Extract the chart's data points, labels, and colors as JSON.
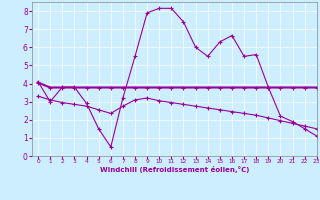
{
  "x": [
    0,
    1,
    2,
    3,
    4,
    5,
    6,
    7,
    8,
    9,
    10,
    11,
    12,
    13,
    14,
    15,
    16,
    17,
    18,
    19,
    20,
    21,
    22,
    23
  ],
  "line1": [
    4.1,
    3.0,
    3.8,
    3.8,
    2.9,
    1.5,
    0.5,
    3.2,
    5.5,
    7.9,
    8.15,
    8.15,
    7.4,
    6.0,
    5.5,
    6.3,
    6.65,
    5.5,
    5.6,
    3.8,
    2.2,
    1.9,
    1.5,
    1.1
  ],
  "line2": [
    4.05,
    3.78,
    3.78,
    3.78,
    3.78,
    3.78,
    3.78,
    3.78,
    3.78,
    3.78,
    3.78,
    3.78,
    3.78,
    3.78,
    3.78,
    3.78,
    3.78,
    3.78,
    3.78,
    3.78,
    3.78,
    3.78,
    3.78,
    3.78
  ],
  "line3": [
    3.3,
    3.1,
    2.95,
    2.85,
    2.75,
    2.55,
    2.35,
    2.75,
    3.1,
    3.2,
    3.05,
    2.95,
    2.85,
    2.75,
    2.65,
    2.55,
    2.45,
    2.35,
    2.25,
    2.1,
    1.95,
    1.8,
    1.65,
    1.5
  ],
  "color": "#990099",
  "bgcolor": "#cceeff",
  "xlabel": "Windchill (Refroidissement éolien,°C)",
  "ylim": [
    0,
    8.5
  ],
  "xlim": [
    -0.5,
    23
  ],
  "yticks": [
    0,
    1,
    2,
    3,
    4,
    5,
    6,
    7,
    8
  ],
  "xticks": [
    0,
    1,
    2,
    3,
    4,
    5,
    6,
    7,
    8,
    9,
    10,
    11,
    12,
    13,
    14,
    15,
    16,
    17,
    18,
    19,
    20,
    21,
    22,
    23
  ]
}
